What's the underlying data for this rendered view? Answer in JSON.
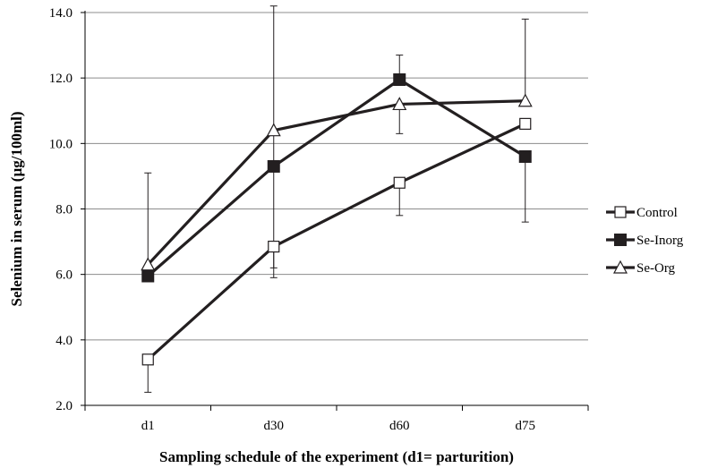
{
  "chart_data": {
    "type": "line",
    "title": "",
    "xlabel": "Sampling schedule of the experiment (d1= parturition)",
    "ylabel": "Selenium in serum (µg/100ml)",
    "categories": [
      "d1",
      "d30",
      "d60",
      "d75"
    ],
    "ylim": [
      2.0,
      14.0
    ],
    "yticks": [
      2.0,
      4.0,
      6.0,
      8.0,
      10.0,
      12.0,
      14.0
    ],
    "ytick_labels": [
      "2.0",
      "4.0",
      "6.0",
      "8.0",
      "10.0",
      "12.0",
      "14.0"
    ],
    "grid": "horizontal",
    "legend_position": "right",
    "series": [
      {
        "name": "Control",
        "marker": "open-square",
        "values": [
          3.4,
          6.85,
          8.8,
          10.6
        ],
        "error_low": [
          2.4,
          5.9,
          7.8,
          null
        ],
        "error_high": [
          null,
          null,
          null,
          null
        ]
      },
      {
        "name": "Se-Inorg",
        "marker": "filled-square",
        "values": [
          5.95,
          9.3,
          11.95,
          9.6
        ],
        "error_low": [
          null,
          null,
          null,
          7.6
        ],
        "error_high": [
          null,
          null,
          12.7,
          null
        ]
      },
      {
        "name": "Se-Org",
        "marker": "open-triangle",
        "values": [
          6.3,
          10.4,
          11.2,
          11.3
        ],
        "error_low": [
          null,
          6.2,
          10.3,
          null
        ],
        "error_high": [
          9.1,
          14.2,
          null,
          13.8
        ]
      }
    ],
    "colors": {
      "line": "#231f20",
      "grid": "#8c8c8c",
      "axis": "#000000",
      "marker_fill_open": "#ffffff"
    }
  }
}
